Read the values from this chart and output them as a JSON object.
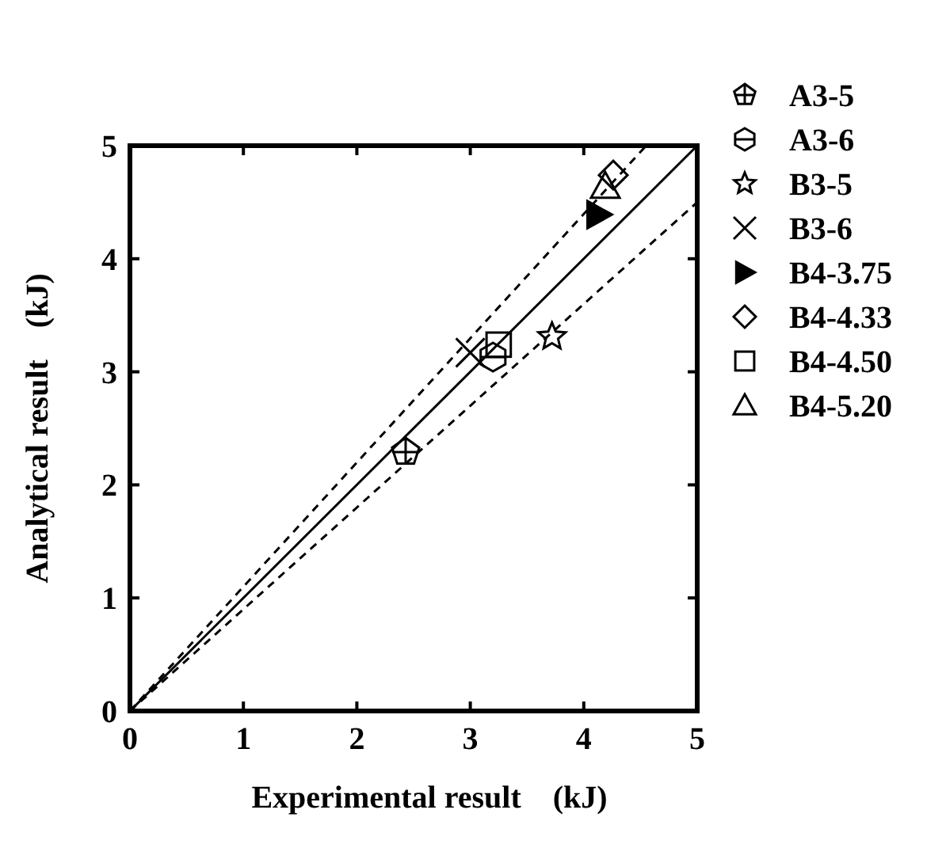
{
  "chart_data": {
    "type": "scatter",
    "xlabel": "Experimental result    (kJ)",
    "ylabel": "Analytical result    (kJ)",
    "xlim": [
      0,
      5
    ],
    "ylim": [
      0,
      5
    ],
    "xticks": [
      0,
      1,
      2,
      3,
      4,
      5
    ],
    "yticks": [
      0,
      1,
      2,
      3,
      4,
      5
    ],
    "grid": false,
    "legend": "right",
    "series": [
      {
        "name": "A3-5",
        "color": "#000000",
        "x": [
          2.43
        ],
        "values": [
          2.29
        ]
      },
      {
        "name": "A3-6",
        "color": "#000000",
        "x": [
          3.2
        ],
        "values": [
          3.13
        ]
      },
      {
        "name": "B3-5",
        "color": "#000000",
        "marker": "star",
        "x": [
          3.72
        ],
        "values": [
          3.31
        ]
      },
      {
        "name": "B3-6",
        "color": "#000000",
        "marker": "cross",
        "x": [
          3.0
        ],
        "values": [
          3.17
        ]
      },
      {
        "name": "B4-3.75",
        "color": "#000000",
        "marker": "triangle-right",
        "x": [
          4.13
        ],
        "values": [
          4.39
        ]
      },
      {
        "name": "B4-4.33",
        "color": "#000000",
        "marker": "diamond",
        "x": [
          4.26
        ],
        "values": [
          4.74
        ]
      },
      {
        "name": "B4-4.50",
        "color": "#000000",
        "marker": "square",
        "x": [
          3.25
        ],
        "values": [
          3.24
        ]
      },
      {
        "name": "B4-5.20",
        "color": "#000000",
        "marker": "triangle",
        "x": [
          4.19
        ],
        "values": [
          4.64
        ]
      },
      {
        "type": "line",
        "color": "#000000",
        "line_style": "solid",
        "x": [
          0,
          5
        ],
        "values": [
          0,
          5
        ]
      },
      {
        "type": "line",
        "color": "#000000",
        "line_style": "dashed",
        "x": [
          0,
          4.55
        ],
        "values": [
          0,
          5
        ]
      },
      {
        "type": "line",
        "color": "#000000",
        "line_style": "dashed",
        "x": [
          0,
          5
        ],
        "values": [
          0,
          4.5
        ]
      }
    ]
  }
}
